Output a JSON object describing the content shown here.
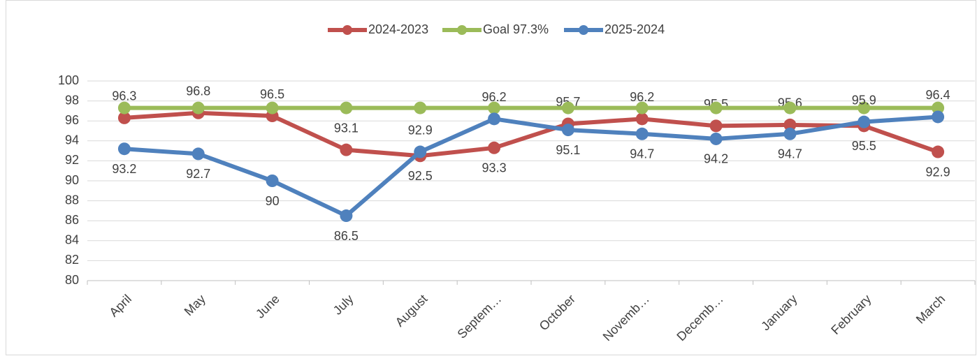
{
  "chart_data": {
    "type": "line",
    "categories": [
      "April",
      "May",
      "June",
      "July",
      "August",
      "Septem…",
      "October",
      "Novemb…",
      "Decemb…",
      "January",
      "February",
      "March"
    ],
    "series": [
      {
        "name": "2024-2023",
        "color": "#c0504d",
        "values": [
          96.3,
          96.8,
          96.5,
          93.1,
          92.5,
          93.3,
          95.7,
          96.2,
          95.5,
          95.6,
          95.5,
          92.9
        ]
      },
      {
        "name": "Goal 97.3%",
        "color": "#9bbb59",
        "values": [
          97.3,
          97.3,
          97.3,
          97.3,
          97.3,
          97.3,
          97.3,
          97.3,
          97.3,
          97.3,
          97.3,
          97.3
        ]
      },
      {
        "name": "2025-2024",
        "color": "#4f81bd",
        "values": [
          93.2,
          92.7,
          90,
          86.5,
          92.9,
          96.2,
          95.1,
          94.7,
          94.2,
          94.7,
          95.9,
          96.4
        ]
      }
    ],
    "ylim": [
      80,
      100
    ],
    "yticks": [
      80,
      82,
      84,
      86,
      88,
      90,
      92,
      94,
      96,
      98,
      100
    ],
    "grid": true,
    "legend": "top"
  }
}
